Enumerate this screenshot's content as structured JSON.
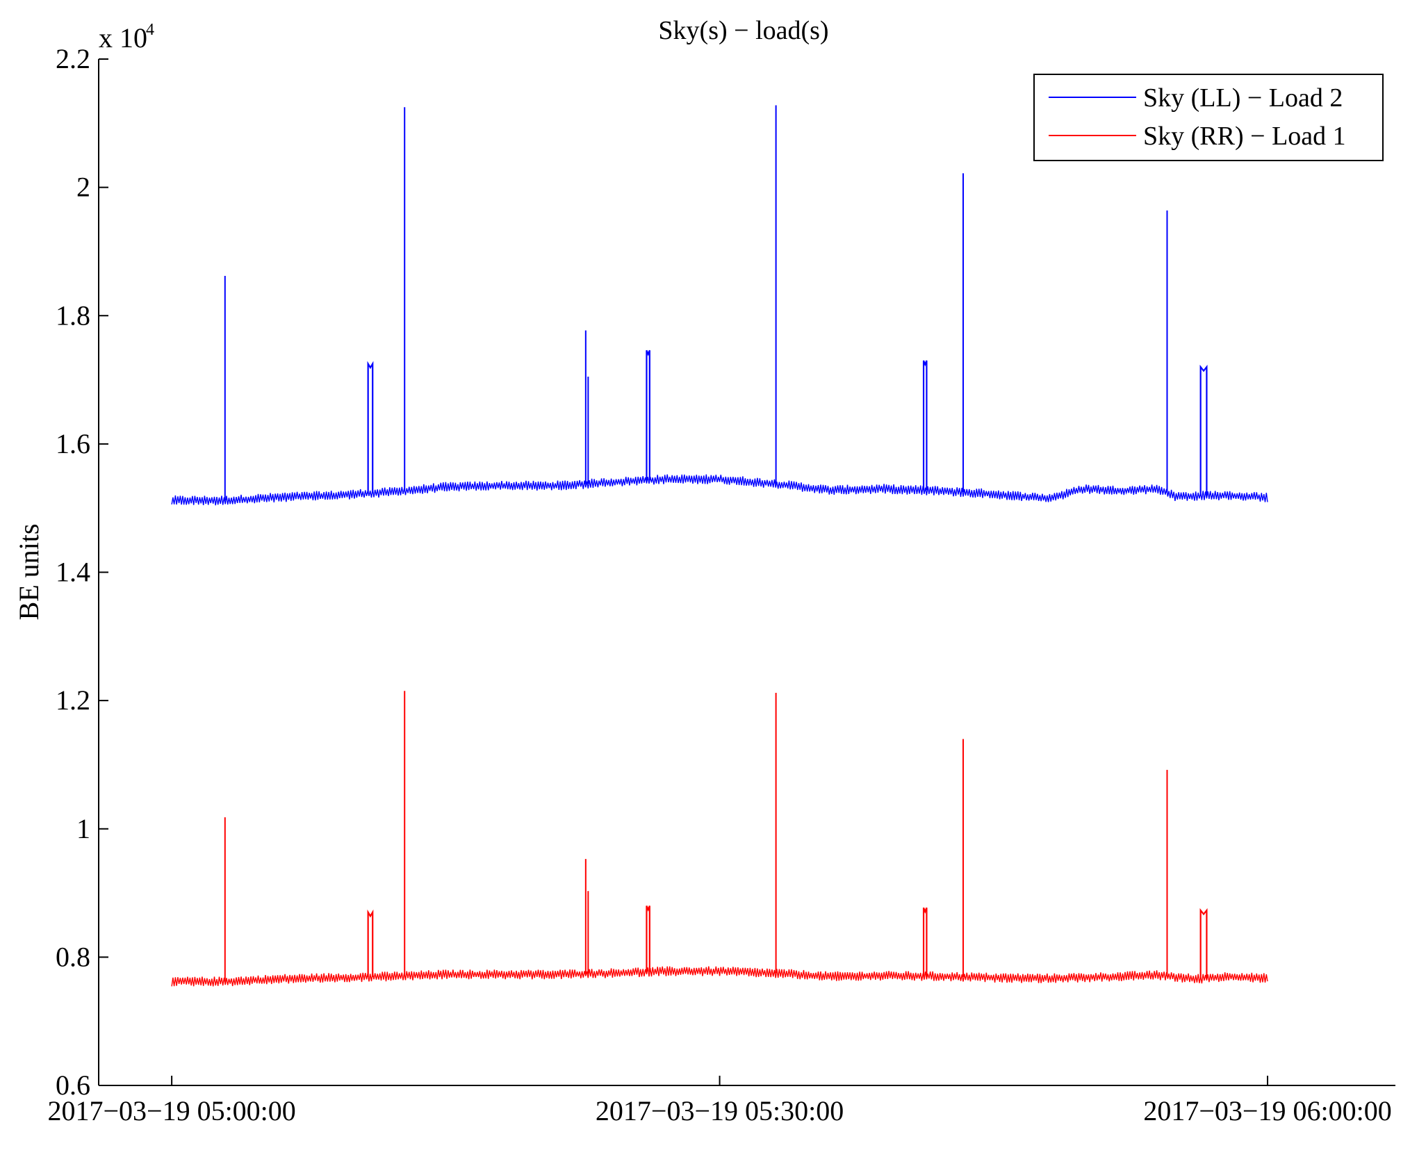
{
  "chart_data": {
    "type": "line",
    "title": "Sky(s) − load(s)",
    "xlabel": "",
    "ylabel": "BE units",
    "y_scale_note": "x 10",
    "y_scale_exponent": "4",
    "xlim": [
      "2017-03-19 04:56:00",
      "2017-03-19 06:07:00"
    ],
    "ylim": [
      0.6,
      2.2
    ],
    "y_ticks": [
      0.6,
      0.8,
      1,
      1.2,
      1.4,
      1.6,
      1.8,
      2,
      2.2
    ],
    "y_tick_labels": [
      "0.6",
      "0.8",
      "1",
      "1.2",
      "1.4",
      "1.6",
      "1.8",
      "2",
      "2.2"
    ],
    "x_ticks": [
      "2017-03-19 05:00:00",
      "2017-03-19 05:30:00",
      "2017-03-19 06:00:00"
    ],
    "x_tick_labels": [
      "2017−03−19 05:00:00",
      "2017−03−19 05:30:00",
      "2017−03−19 06:00:00"
    ],
    "grid": false,
    "legend_position": "top-right",
    "series": [
      {
        "name": "Sky (LL) − Load 2",
        "color": "#0000ff",
        "baseline": [
          [
            "2017-03-19 05:00:00",
            1.512
          ],
          [
            "2017-03-19 05:03:00",
            1.512
          ],
          [
            "2017-03-19 05:06:00",
            1.517
          ],
          [
            "2017-03-19 05:09:00",
            1.52
          ],
          [
            "2017-03-19 05:12:00",
            1.525
          ],
          [
            "2017-03-19 05:15:00",
            1.533
          ],
          [
            "2017-03-19 05:18:00",
            1.535
          ],
          [
            "2017-03-19 05:21:00",
            1.535
          ],
          [
            "2017-03-19 05:24:00",
            1.54
          ],
          [
            "2017-03-19 05:27:00",
            1.545
          ],
          [
            "2017-03-19 05:30:00",
            1.545
          ],
          [
            "2017-03-19 05:33:00",
            1.538
          ],
          [
            "2017-03-19 05:36:00",
            1.528
          ],
          [
            "2017-03-19 05:39:00",
            1.53
          ],
          [
            "2017-03-19 05:42:00",
            1.527
          ],
          [
            "2017-03-19 05:45:00",
            1.522
          ],
          [
            "2017-03-19 05:48:00",
            1.515
          ],
          [
            "2017-03-19 05:50:00",
            1.53
          ],
          [
            "2017-03-19 05:52:00",
            1.527
          ],
          [
            "2017-03-19 05:54:00",
            1.53
          ],
          [
            "2017-03-19 05:55:00",
            1.518
          ],
          [
            "2017-03-19 05:57:00",
            1.52
          ],
          [
            "2017-03-19 06:00:00",
            1.517
          ]
        ],
        "spikes": [
          [
            "2017-03-19 05:02:55",
            1.862
          ],
          [
            "2017-03-19 05:12:45",
            2.125
          ],
          [
            "2017-03-19 05:22:40",
            1.777
          ],
          [
            "2017-03-19 05:22:48",
            1.705
          ],
          [
            "2017-03-19 05:33:05",
            2.128
          ],
          [
            "2017-03-19 05:43:20",
            2.022
          ],
          [
            "2017-03-19 05:54:30",
            1.964
          ]
        ],
        "plateaus": [
          [
            "2017-03-19 05:10:45",
            "2017-03-19 05:11:00",
            1.725
          ],
          [
            "2017-03-19 05:26:00",
            "2017-03-19 05:26:10",
            1.746
          ],
          [
            "2017-03-19 05:41:10",
            "2017-03-19 05:41:20",
            1.73
          ],
          [
            "2017-03-19 05:56:20",
            "2017-03-19 05:56:40",
            1.72
          ]
        ]
      },
      {
        "name": "Sky (RR) − Load 1",
        "color": "#ff0000",
        "baseline": [
          [
            "2017-03-19 05:00:00",
            0.762
          ],
          [
            "2017-03-19 05:03:00",
            0.762
          ],
          [
            "2017-03-19 05:06:00",
            0.766
          ],
          [
            "2017-03-19 05:09:00",
            0.768
          ],
          [
            "2017-03-19 05:12:00",
            0.77
          ],
          [
            "2017-03-19 05:15:00",
            0.773
          ],
          [
            "2017-03-19 05:18:00",
            0.773
          ],
          [
            "2017-03-19 05:21:00",
            0.773
          ],
          [
            "2017-03-19 05:24:00",
            0.775
          ],
          [
            "2017-03-19 05:27:00",
            0.778
          ],
          [
            "2017-03-19 05:30:00",
            0.778
          ],
          [
            "2017-03-19 05:33:00",
            0.775
          ],
          [
            "2017-03-19 05:36:00",
            0.77
          ],
          [
            "2017-03-19 05:39:00",
            0.771
          ],
          [
            "2017-03-19 05:42:00",
            0.77
          ],
          [
            "2017-03-19 05:45:00",
            0.768
          ],
          [
            "2017-03-19 05:48:00",
            0.767
          ],
          [
            "2017-03-19 05:51:00",
            0.769
          ],
          [
            "2017-03-19 05:54:00",
            0.772
          ],
          [
            "2017-03-19 05:56:00",
            0.766
          ],
          [
            "2017-03-19 05:58:00",
            0.77
          ],
          [
            "2017-03-19 06:00:00",
            0.767
          ]
        ],
        "spikes": [
          [
            "2017-03-19 05:02:55",
            1.018
          ],
          [
            "2017-03-19 05:12:45",
            1.215
          ],
          [
            "2017-03-19 05:22:40",
            0.953
          ],
          [
            "2017-03-19 05:22:48",
            0.903
          ],
          [
            "2017-03-19 05:33:05",
            1.212
          ],
          [
            "2017-03-19 05:43:20",
            1.14
          ],
          [
            "2017-03-19 05:54:30",
            1.092
          ]
        ],
        "plateaus": [
          [
            "2017-03-19 05:10:45",
            "2017-03-19 05:11:00",
            0.87
          ],
          [
            "2017-03-19 05:26:00",
            "2017-03-19 05:26:10",
            0.88
          ],
          [
            "2017-03-19 05:41:10",
            "2017-03-19 05:41:20",
            0.877
          ],
          [
            "2017-03-19 05:56:20",
            "2017-03-19 05:56:40",
            0.873
          ]
        ]
      }
    ]
  }
}
